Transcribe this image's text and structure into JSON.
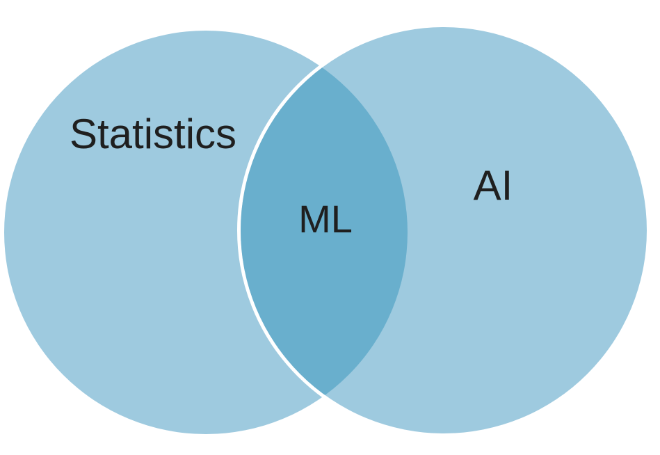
{
  "diagram": {
    "type": "venn",
    "sets": [
      {
        "label": "Statistics"
      },
      {
        "label": "AI"
      }
    ],
    "intersection": {
      "label": "ML"
    },
    "colors": {
      "circle_fill": "#9ecadf",
      "intersection_fill": "#69afcd",
      "separator": "#ffffff",
      "text": "#1f1f1f"
    }
  }
}
